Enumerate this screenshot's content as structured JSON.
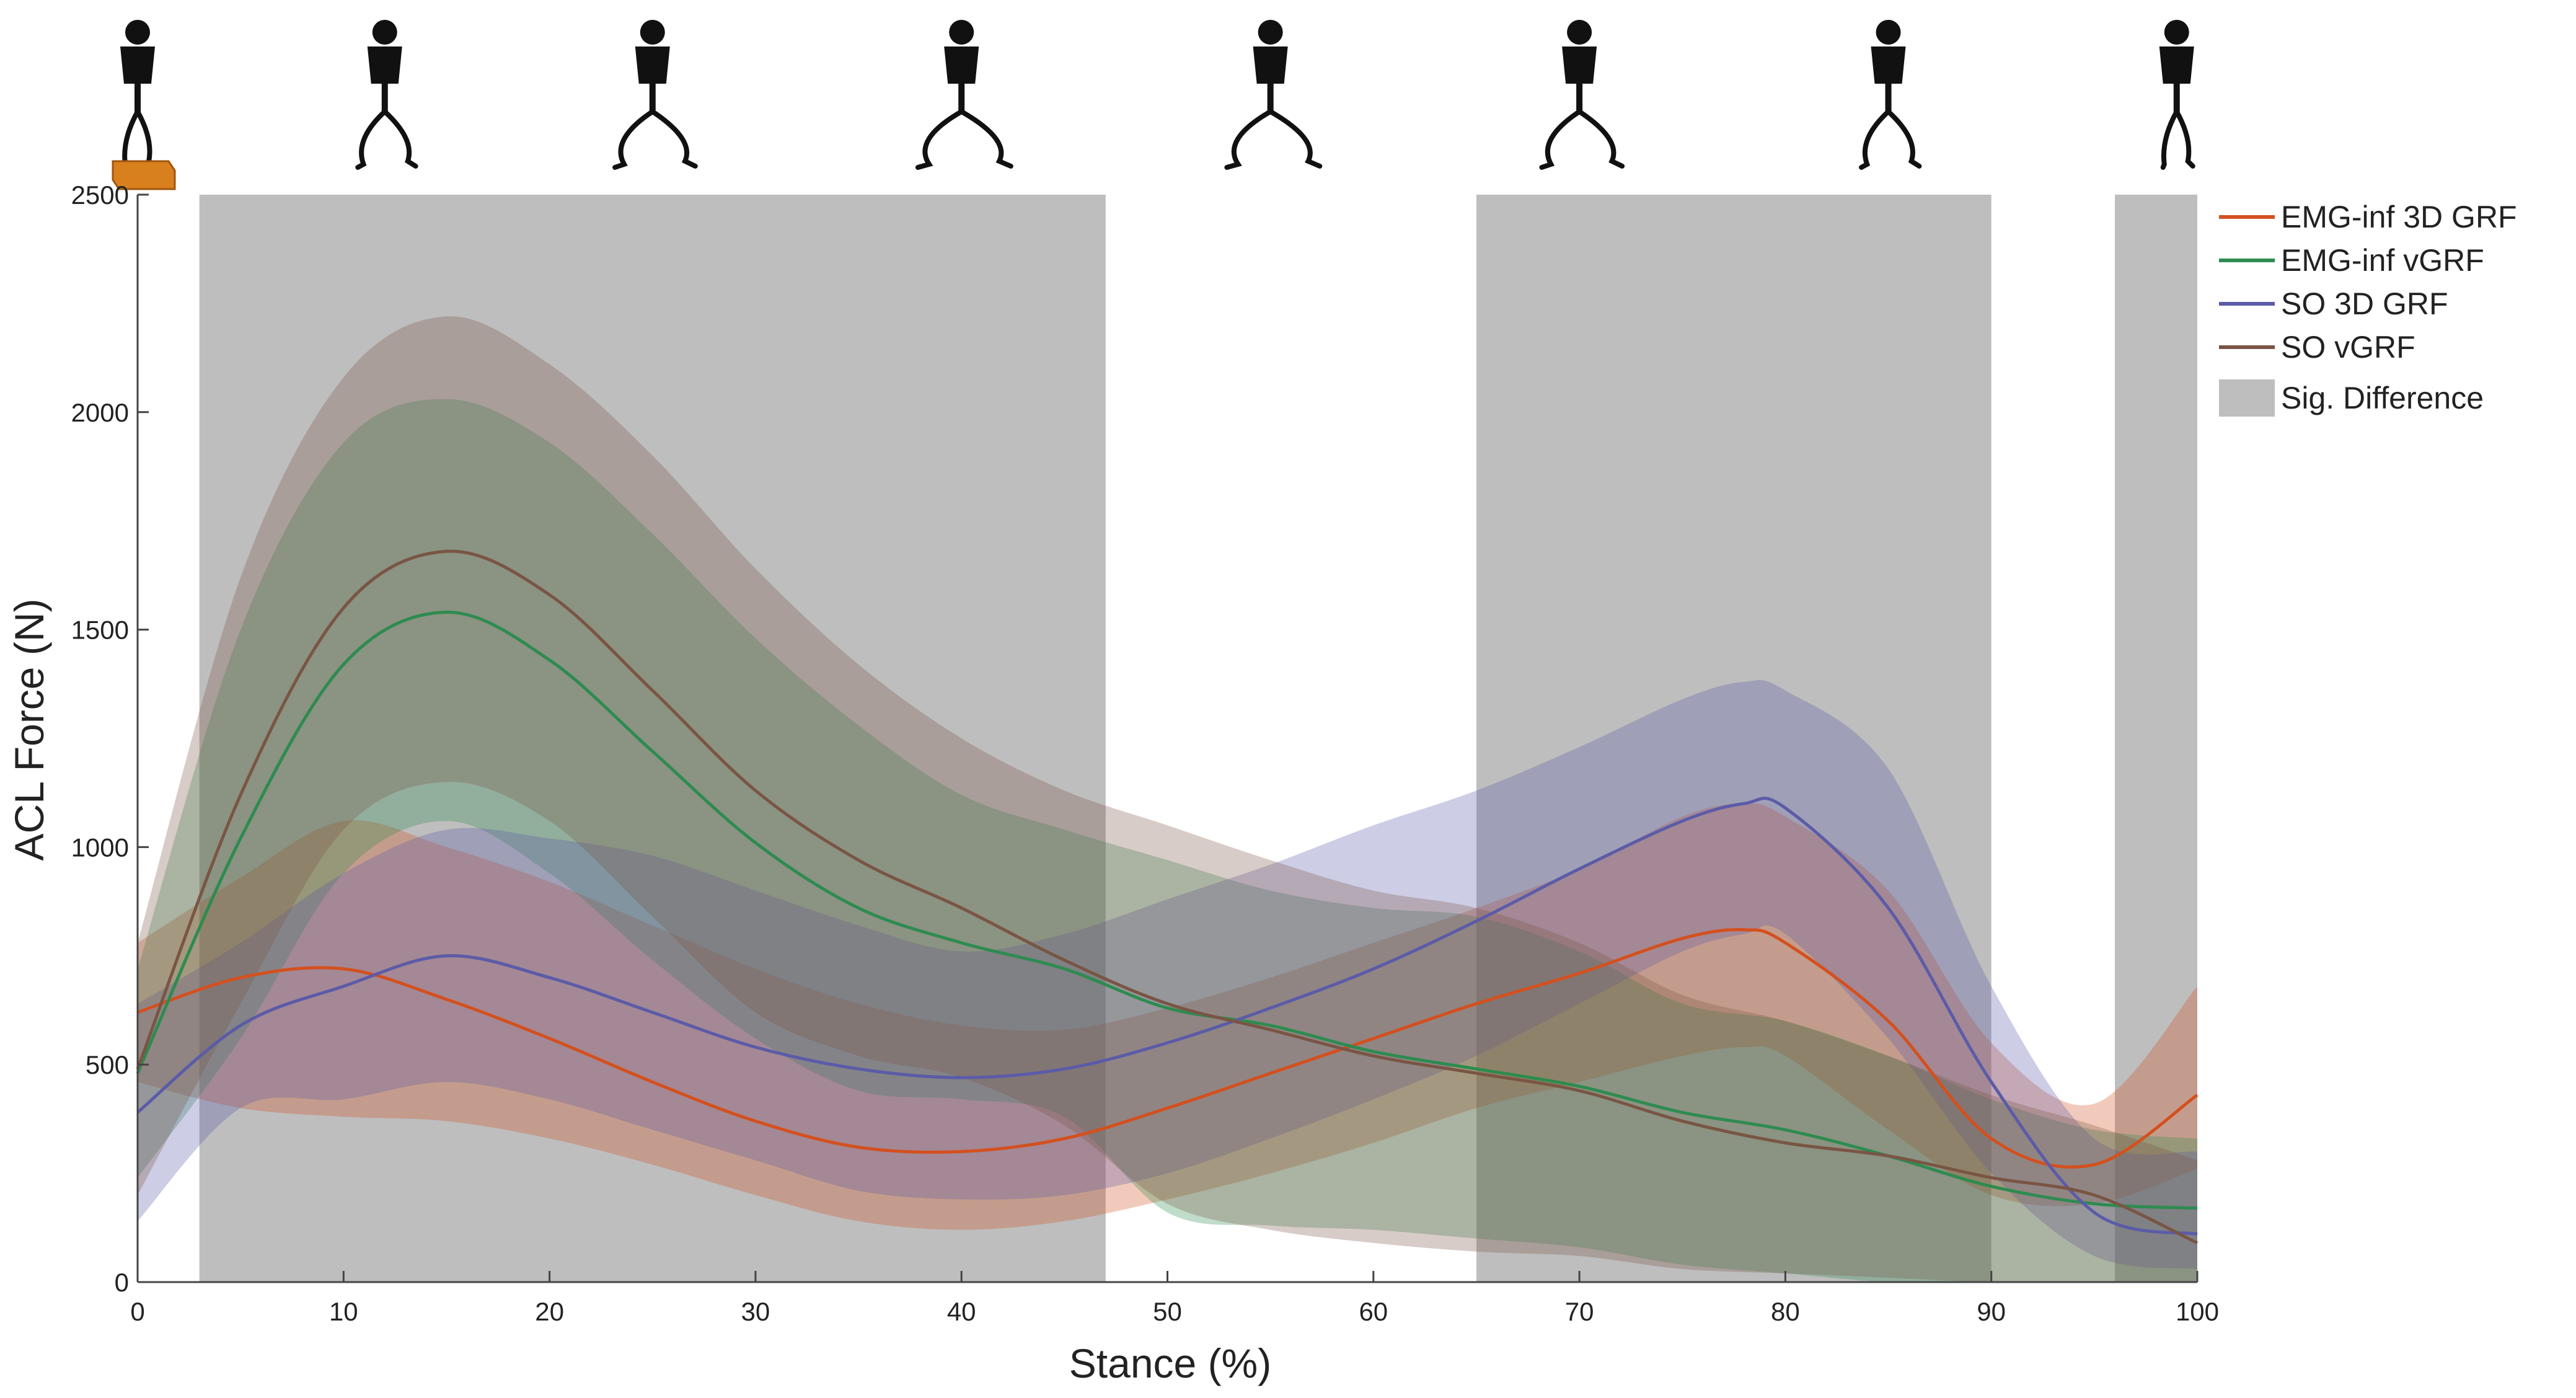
{
  "chart_data": {
    "type": "line",
    "title": "",
    "xlabel": "Stance (%)",
    "ylabel": "ACL Force (N)",
    "xlim": [
      0,
      100
    ],
    "ylim": [
      0,
      2500
    ],
    "xticks": [
      0,
      10,
      20,
      30,
      40,
      50,
      60,
      70,
      80,
      90,
      100
    ],
    "yticks": [
      0,
      500,
      1000,
      1500,
      2000,
      2500
    ],
    "grid": false,
    "legend_position": "top-right, outside plot",
    "stance_figures": [
      0,
      12,
      25,
      40,
      55,
      70,
      85,
      99
    ],
    "sig_difference": {
      "name": "Sig. Difference",
      "color": "#bebebe",
      "regions": [
        [
          3,
          47
        ],
        [
          65,
          90
        ],
        [
          96,
          100
        ]
      ]
    },
    "series": [
      {
        "name": "EMG-inf 3D GRF",
        "color": "#d4501e",
        "x": [
          0,
          5,
          10,
          15,
          20,
          25,
          30,
          35,
          40,
          45,
          50,
          55,
          60,
          65,
          70,
          75,
          78,
          80,
          85,
          90,
          95,
          100
        ],
        "mean": [
          620,
          700,
          720,
          650,
          560,
          460,
          370,
          310,
          300,
          330,
          400,
          480,
          560,
          640,
          710,
          790,
          810,
          780,
          600,
          330,
          270,
          430
        ],
        "upper": [
          780,
          930,
          1060,
          1000,
          920,
          820,
          720,
          640,
          590,
          580,
          630,
          700,
          780,
          860,
          950,
          1070,
          1100,
          1070,
          900,
          550,
          410,
          680
        ],
        "lower": [
          460,
          400,
          380,
          370,
          330,
          270,
          200,
          140,
          120,
          140,
          190,
          250,
          320,
          400,
          460,
          520,
          540,
          520,
          350,
          200,
          180,
          260
        ]
      },
      {
        "name": "EMG-inf vGRF",
        "color": "#2e8b50",
        "x": [
          0,
          5,
          10,
          15,
          20,
          25,
          30,
          35,
          40,
          45,
          50,
          55,
          60,
          65,
          70,
          75,
          80,
          85,
          90,
          95,
          100
        ],
        "mean": [
          480,
          1020,
          1420,
          1540,
          1430,
          1220,
          1010,
          860,
          780,
          720,
          630,
          590,
          530,
          490,
          450,
          390,
          350,
          290,
          220,
          180,
          170
        ],
        "upper": [
          720,
          1500,
          1930,
          2030,
          1930,
          1720,
          1480,
          1280,
          1120,
          1040,
          970,
          900,
          860,
          840,
          760,
          640,
          600,
          520,
          420,
          350,
          330
        ],
        "lower": [
          240,
          560,
          940,
          1060,
          940,
          740,
          560,
          440,
          420,
          380,
          160,
          130,
          120,
          100,
          80,
          40,
          20,
          0,
          0,
          0,
          0
        ]
      },
      {
        "name": "SO 3D GRF",
        "color": "#5b5ba8",
        "x": [
          0,
          5,
          10,
          15,
          20,
          25,
          30,
          35,
          40,
          45,
          50,
          55,
          60,
          65,
          70,
          75,
          78,
          80,
          85,
          90,
          95,
          100
        ],
        "mean": [
          390,
          590,
          680,
          750,
          700,
          620,
          540,
          490,
          470,
          490,
          550,
          630,
          720,
          830,
          950,
          1060,
          1100,
          1090,
          860,
          460,
          160,
          110
        ],
        "upper": [
          640,
          780,
          940,
          1040,
          1020,
          980,
          900,
          820,
          760,
          800,
          880,
          960,
          1050,
          1130,
          1230,
          1340,
          1380,
          1360,
          1180,
          680,
          330,
          300
        ],
        "lower": [
          140,
          400,
          420,
          460,
          420,
          350,
          280,
          210,
          190,
          200,
          250,
          330,
          420,
          520,
          640,
          760,
          800,
          800,
          560,
          250,
          60,
          30
        ]
      },
      {
        "name": "SO vGRF",
        "color": "#7a5544",
        "x": [
          0,
          5,
          10,
          15,
          20,
          25,
          30,
          35,
          40,
          45,
          50,
          55,
          60,
          65,
          70,
          75,
          80,
          85,
          90,
          95,
          100
        ],
        "mean": [
          490,
          1120,
          1550,
          1680,
          1580,
          1360,
          1130,
          970,
          860,
          740,
          640,
          580,
          520,
          480,
          440,
          370,
          320,
          290,
          240,
          200,
          90
        ],
        "upper": [
          780,
          1620,
          2080,
          2220,
          2110,
          1900,
          1640,
          1420,
          1250,
          1130,
          1050,
          970,
          900,
          860,
          780,
          660,
          600,
          520,
          430,
          360,
          280
        ],
        "lower": [
          200,
          640,
          1040,
          1150,
          1060,
          840,
          620,
          520,
          470,
          360,
          180,
          120,
          90,
          70,
          60,
          30,
          20,
          10,
          0,
          0,
          0
        ]
      }
    ]
  }
}
